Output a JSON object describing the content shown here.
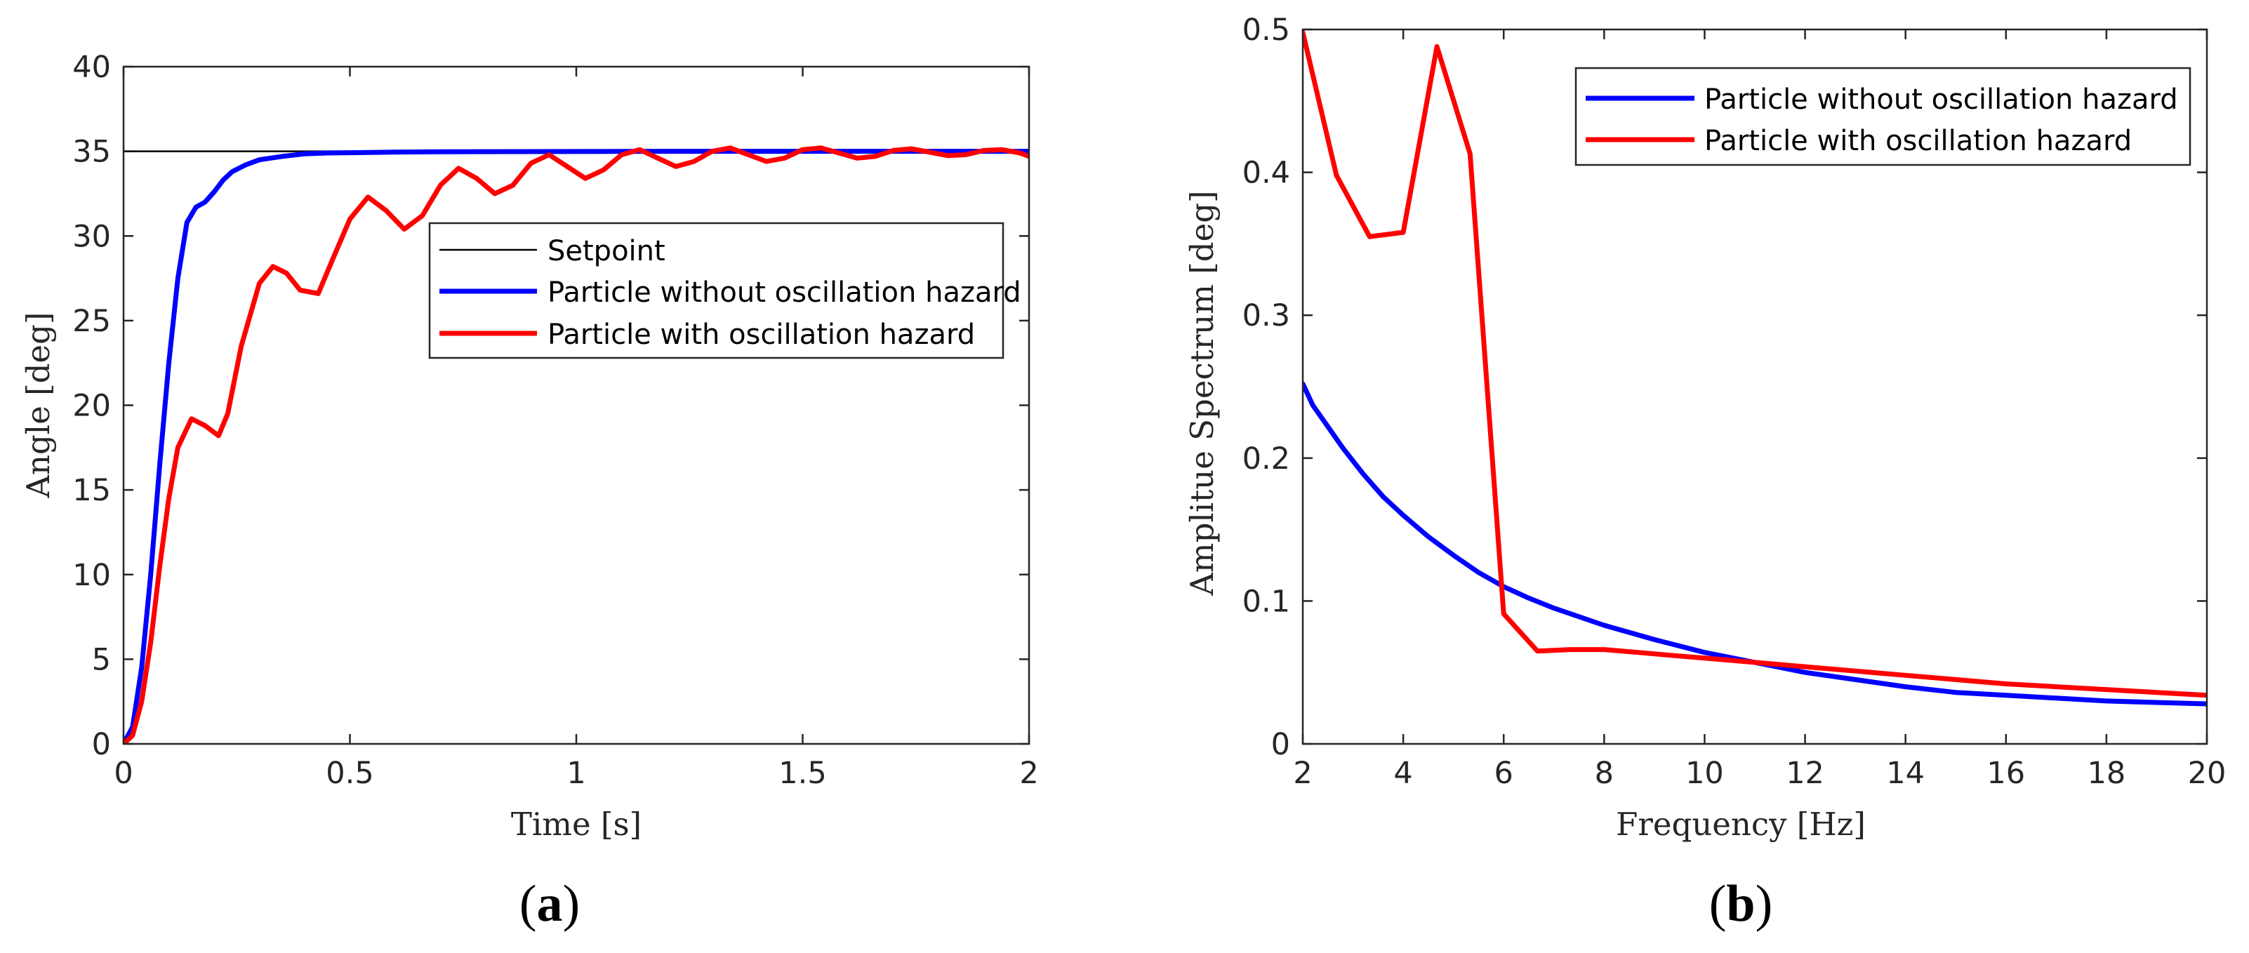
{
  "chart_data": [
    {
      "type": "line",
      "panel_label": "(a)",
      "caption": {
        "open": "(",
        "letter": "a",
        "close": ")"
      },
      "title": "",
      "xlabel": "Time [s]",
      "ylabel": "Angle [deg]",
      "xlim": [
        0,
        2
      ],
      "ylim": [
        0,
        40
      ],
      "xticks": [
        0,
        0.5,
        1,
        1.5,
        2
      ],
      "xtick_labels": [
        "0",
        "0.5",
        "1",
        "1.5",
        "2"
      ],
      "yticks": [
        0,
        5,
        10,
        15,
        20,
        25,
        30,
        35,
        40
      ],
      "ytick_labels": [
        "0",
        "5",
        "10",
        "15",
        "20",
        "25",
        "30",
        "35",
        "40"
      ],
      "grid": false,
      "legend_position": "center-right",
      "series": [
        {
          "name": "Setpoint",
          "color": "#000000",
          "x": [
            0,
            2
          ],
          "y": [
            35,
            35
          ]
        },
        {
          "name": "Particle without oscillation hazard",
          "color": "#0000ff",
          "x": [
            0,
            0.02,
            0.04,
            0.06,
            0.08,
            0.1,
            0.12,
            0.14,
            0.16,
            0.18,
            0.2,
            0.22,
            0.24,
            0.27,
            0.3,
            0.35,
            0.4,
            0.45,
            0.5,
            0.6,
            0.7,
            0.8,
            1.0,
            1.2,
            1.5,
            2.0
          ],
          "y": [
            0,
            1.0,
            4.5,
            10.0,
            16.5,
            22.5,
            27.5,
            30.8,
            31.7,
            32.0,
            32.6,
            33.3,
            33.8,
            34.2,
            34.5,
            34.7,
            34.85,
            34.9,
            34.92,
            34.95,
            34.97,
            34.98,
            34.99,
            35.0,
            35.0,
            35.0
          ]
        },
        {
          "name": "Particle with oscillation hazard",
          "color": "#ff0000",
          "x": [
            0,
            0.02,
            0.04,
            0.06,
            0.08,
            0.1,
            0.12,
            0.15,
            0.18,
            0.21,
            0.23,
            0.26,
            0.3,
            0.33,
            0.36,
            0.39,
            0.43,
            0.46,
            0.5,
            0.54,
            0.58,
            0.62,
            0.66,
            0.7,
            0.74,
            0.78,
            0.82,
            0.86,
            0.9,
            0.94,
            0.98,
            1.02,
            1.06,
            1.1,
            1.14,
            1.18,
            1.22,
            1.26,
            1.3,
            1.34,
            1.38,
            1.42,
            1.46,
            1.5,
            1.54,
            1.58,
            1.62,
            1.66,
            1.7,
            1.74,
            1.78,
            1.82,
            1.86,
            1.9,
            1.94,
            1.98,
            2.0
          ],
          "y": [
            0,
            0.5,
            2.5,
            6.0,
            10.5,
            14.5,
            17.5,
            19.2,
            18.8,
            18.2,
            19.5,
            23.5,
            27.2,
            28.2,
            27.8,
            26.8,
            26.6,
            28.5,
            31.0,
            32.3,
            31.5,
            30.4,
            31.2,
            33.0,
            34.0,
            33.4,
            32.5,
            33.0,
            34.3,
            34.8,
            34.1,
            33.4,
            33.9,
            34.8,
            35.1,
            34.6,
            34.1,
            34.4,
            35.0,
            35.2,
            34.8,
            34.4,
            34.6,
            35.1,
            35.2,
            34.9,
            34.6,
            34.7,
            35.05,
            35.15,
            34.95,
            34.75,
            34.8,
            35.05,
            35.1,
            34.9,
            34.7
          ]
        }
      ]
    },
    {
      "type": "line",
      "panel_label": "(b)",
      "caption": {
        "open": "(",
        "letter": "b",
        "close": ")"
      },
      "title": "",
      "xlabel": "Frequency [Hz]",
      "ylabel": "Amplitue Spectrum [deg]",
      "xlim": [
        2,
        20
      ],
      "ylim": [
        0,
        0.5
      ],
      "xticks": [
        2,
        4,
        6,
        8,
        10,
        12,
        14,
        16,
        18,
        20
      ],
      "xtick_labels": [
        "2",
        "4",
        "6",
        "8",
        "10",
        "12",
        "14",
        "16",
        "18",
        "20"
      ],
      "yticks": [
        0,
        0.1,
        0.2,
        0.3,
        0.4,
        0.5
      ],
      "ytick_labels": [
        "0",
        "0.1",
        "0.2",
        "0.3",
        "0.4",
        "0.5"
      ],
      "grid": false,
      "legend_position": "top-right",
      "series": [
        {
          "name": "Particle without oscillation hazard",
          "color": "#0000ff",
          "x": [
            2,
            2.2,
            2.5,
            2.8,
            3.2,
            3.6,
            4.0,
            4.5,
            5.0,
            5.5,
            6.0,
            6.5,
            7.0,
            8.0,
            9.0,
            10.0,
            11.0,
            12.0,
            13.0,
            14.0,
            15.0,
            16.0,
            17.0,
            18.0,
            19.0,
            20.0
          ],
          "y": [
            0.252,
            0.237,
            0.222,
            0.207,
            0.189,
            0.173,
            0.16,
            0.145,
            0.132,
            0.12,
            0.11,
            0.102,
            0.095,
            0.083,
            0.073,
            0.064,
            0.057,
            0.05,
            0.045,
            0.04,
            0.036,
            0.034,
            0.032,
            0.03,
            0.029,
            0.028
          ]
        },
        {
          "name": "Particle with oscillation hazard",
          "color": "#ff0000",
          "x": [
            2.0,
            2.67,
            3.33,
            4.0,
            4.67,
            5.33,
            6.0,
            6.67,
            7.33,
            8.0,
            8.67,
            9.33,
            10.0,
            11.0,
            12.0,
            13.0,
            14.0,
            15.0,
            16.0,
            17.0,
            18.0,
            19.0,
            20.0
          ],
          "y": [
            0.498,
            0.398,
            0.355,
            0.358,
            0.488,
            0.413,
            0.091,
            0.065,
            0.066,
            0.066,
            0.064,
            0.062,
            0.06,
            0.057,
            0.054,
            0.051,
            0.048,
            0.045,
            0.042,
            0.04,
            0.038,
            0.036,
            0.034
          ]
        }
      ]
    }
  ]
}
